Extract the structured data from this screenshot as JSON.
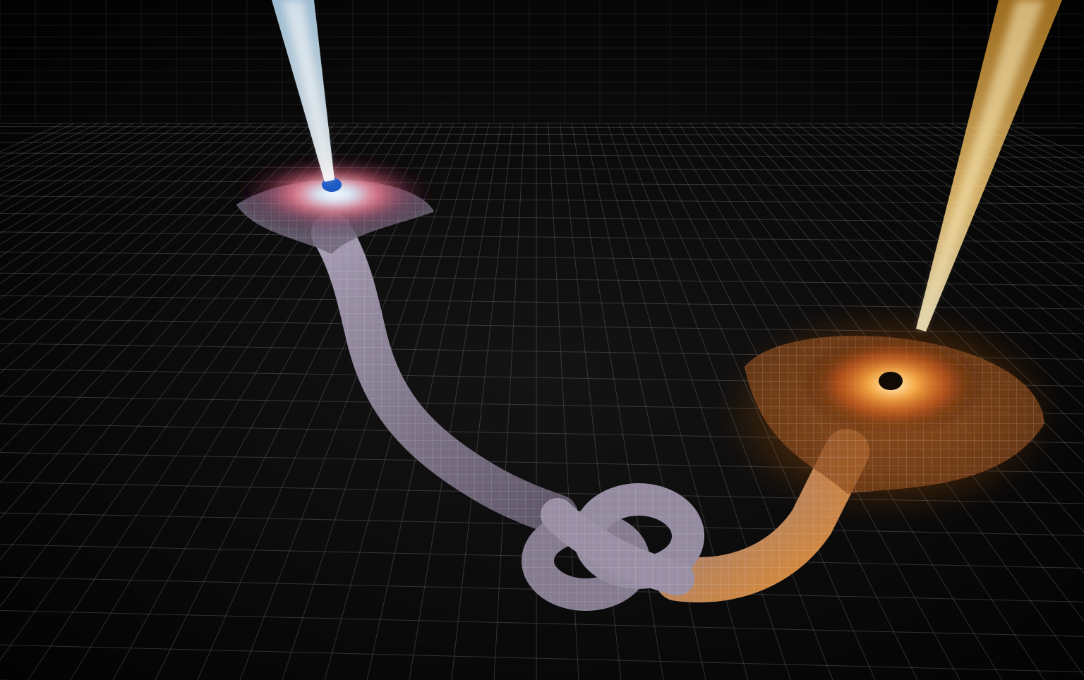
{
  "scene": {
    "subject": "illustration",
    "palette": {
      "background": "#050505",
      "grid": "#9a9a9a",
      "tube": "#8f8799",
      "tube_highlight": "#d9d2e6",
      "blue_jet": "#cfeaff",
      "blue_core": "#2c6fd6",
      "orange_jet": "#f3b44a",
      "orange_glow": "#ff8a1a",
      "disk_pink": "#ff6a8a"
    },
    "icons": [
      "wormhole-left-mouth-icon",
      "wormhole-right-mouth-icon",
      "knot-icon",
      "jet-icon"
    ]
  }
}
